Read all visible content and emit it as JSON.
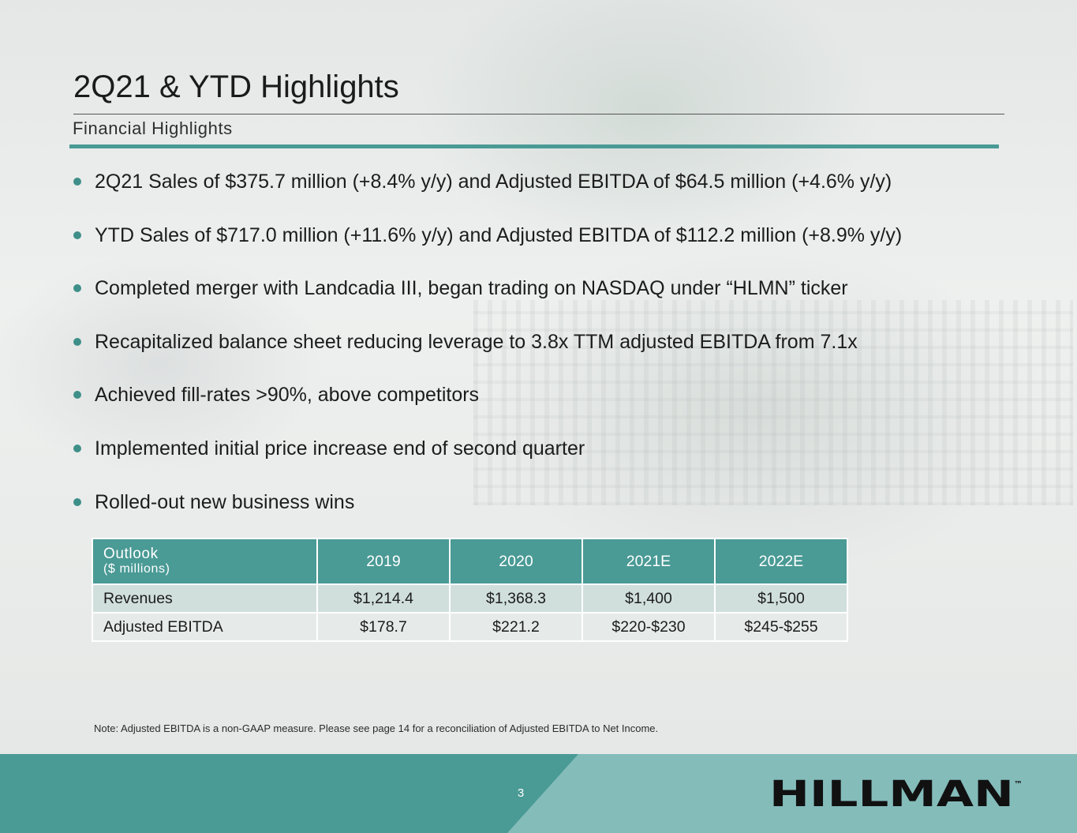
{
  "slide": {
    "title": "2Q21 & YTD Highlights",
    "subtitle": "Financial Highlights"
  },
  "bullets": [
    "2Q21 Sales of $375.7 million (+8.4% y/y) and Adjusted EBITDA of $64.5 million (+4.6% y/y)",
    "YTD Sales of $717.0 million (+11.6% y/y) and Adjusted EBITDA of $112.2 million (+8.9% y/y)",
    "Completed merger with Landcadia III, began trading on NASDAQ under “HLMN” ticker",
    "Recapitalized balance sheet reducing leverage to 3.8x TTM adjusted EBITDA from 7.1x",
    "Achieved fill-rates >90%, above competitors",
    "Implemented initial price increase end of second quarter",
    "Rolled-out new business wins"
  ],
  "outlook_table": {
    "header_label": "Outlook",
    "header_units": "($ millions)",
    "columns": [
      "2019",
      "2020",
      "2021E",
      "2022E"
    ],
    "rows": [
      {
        "label": "Revenues",
        "values": [
          "$1,214.4",
          "$1,368.3",
          "$1,400",
          "$1,500"
        ]
      },
      {
        "label": "Adjusted EBITDA",
        "values": [
          "$178.7",
          "$221.2",
          "$220-$230",
          "$245-$255"
        ]
      }
    ]
  },
  "note": "Note: Adjusted EBITDA is a non-GAAP measure. Please see page 14 for a reconciliation of Adjusted EBITDA to Net Income.",
  "footer": {
    "page_number": "3",
    "logo_text": "HILLMAN",
    "logo_trademark": "™"
  },
  "colors": {
    "accent_teal": "#4a9a95",
    "footer_light_teal": "#84bcba",
    "row_light": "#d0dfdc"
  }
}
